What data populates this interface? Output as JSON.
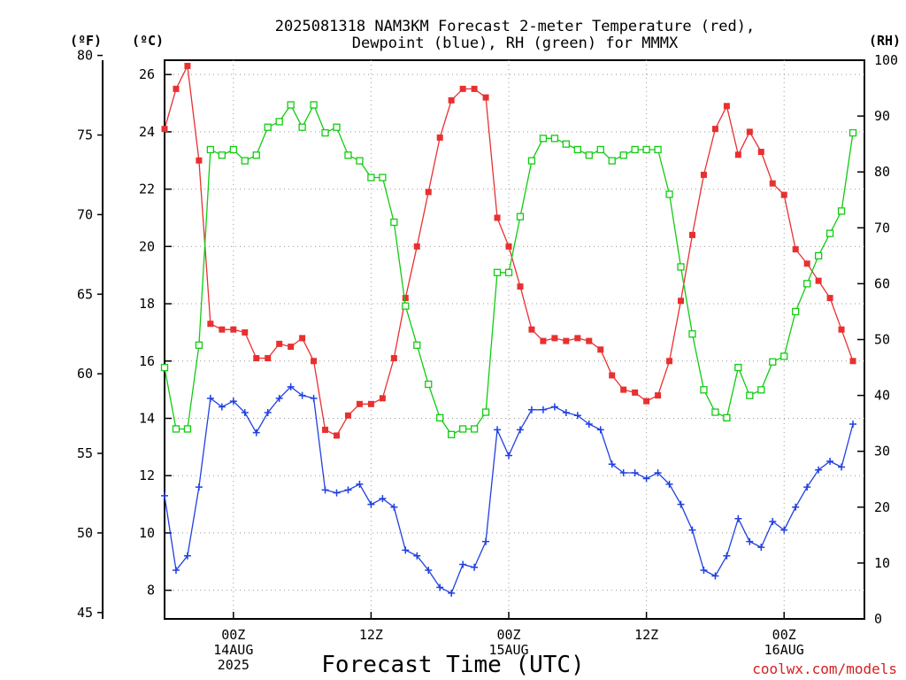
{
  "title_line1": "2025081318 NAM3KM Forecast 2-meter Temperature (red),",
  "title_line2": "Dewpoint (blue), RH (green) for MMMX",
  "unit_f": "(ºF)",
  "unit_c": "(ºC)",
  "unit_rh": "(RH)",
  "xlabel": "Forecast Time (UTC)",
  "credit": "coolwx.com/models",
  "colors": {
    "temperature": "#e83030",
    "dewpoint": "#2040e0",
    "rh": "#10cc10"
  },
  "chart_data": {
    "type": "line",
    "x_unit": "forecast hour from 2025081318 (1-hourly)",
    "x_range": [
      0,
      61
    ],
    "y_left_c_range": [
      7,
      26.5
    ],
    "y_right_rh_range": [
      0,
      100
    ],
    "f_ticks": [
      "80",
      "75",
      "70",
      "65",
      "60",
      "55",
      "50",
      "45"
    ],
    "c_ticks": [
      "26",
      "24",
      "22",
      "20",
      "18",
      "16",
      "14",
      "12",
      "10",
      "8"
    ],
    "rh_ticks": [
      "100",
      "90",
      "80",
      "70",
      "60",
      "50",
      "40",
      "30",
      "20",
      "10",
      "0"
    ],
    "x_ticks": [
      {
        "hour": 6,
        "lines": [
          "00Z",
          "14AUG",
          "2025"
        ]
      },
      {
        "hour": 18,
        "lines": [
          "12Z"
        ]
      },
      {
        "hour": 30,
        "lines": [
          "00Z",
          "15AUG"
        ]
      },
      {
        "hour": 42,
        "lines": [
          "12Z"
        ]
      },
      {
        "hour": 54,
        "lines": [
          "00Z",
          "16AUG"
        ]
      }
    ],
    "grid": true,
    "series": [
      {
        "key": "temperature",
        "marker": "filled-square",
        "values": [
          24.1,
          25.5,
          26.3,
          23.0,
          17.3,
          17.1,
          17.1,
          17.0,
          16.1,
          16.1,
          16.6,
          16.5,
          16.8,
          16.0,
          13.6,
          13.4,
          14.1,
          14.5,
          14.5,
          14.7,
          16.1,
          18.2,
          20.0,
          21.9,
          23.8,
          25.1,
          25.5,
          25.5,
          25.2,
          21.0,
          20.0,
          18.6,
          17.1,
          16.7,
          16.8,
          16.7,
          16.8,
          16.7,
          16.4,
          15.5,
          15.0,
          14.9,
          14.6,
          14.8,
          16.0,
          18.1,
          20.4,
          22.5,
          24.1,
          24.9,
          23.2,
          24.0,
          23.3,
          22.2,
          21.8,
          19.9,
          19.4,
          18.8,
          18.2,
          17.1,
          16.0
        ]
      },
      {
        "key": "dewpoint",
        "marker": "plus",
        "values": [
          11.3,
          8.7,
          9.2,
          11.6,
          14.7,
          14.4,
          14.6,
          14.2,
          13.5,
          14.2,
          14.7,
          15.1,
          14.8,
          14.7,
          11.5,
          11.4,
          11.5,
          11.7,
          11.0,
          11.2,
          10.9,
          9.4,
          9.2,
          8.7,
          8.1,
          7.9,
          8.9,
          8.8,
          9.7,
          13.6,
          12.7,
          13.6,
          14.3,
          14.3,
          14.4,
          14.2,
          14.1,
          13.8,
          13.6,
          12.4,
          12.1,
          12.1,
          11.9,
          12.1,
          11.7,
          11.0,
          10.1,
          8.7,
          8.5,
          9.2,
          10.5,
          9.7,
          9.5,
          10.4,
          10.1,
          10.9,
          11.6,
          12.2,
          12.5,
          12.3,
          13.8
        ]
      },
      {
        "key": "rh",
        "marker": "open-square",
        "values": [
          45,
          34,
          34,
          49,
          84,
          83,
          84,
          82,
          83,
          88,
          89,
          92,
          88,
          92,
          87,
          88,
          83,
          82,
          79,
          79,
          71,
          56,
          49,
          42,
          36,
          33,
          34,
          34,
          37,
          62,
          62,
          72,
          82,
          86,
          86,
          85,
          84,
          83,
          84,
          82,
          83,
          84,
          84,
          84,
          76,
          63,
          51,
          41,
          37,
          36,
          45,
          40,
          41,
          46,
          47,
          55,
          60,
          65,
          69,
          73,
          87
        ]
      }
    ]
  }
}
